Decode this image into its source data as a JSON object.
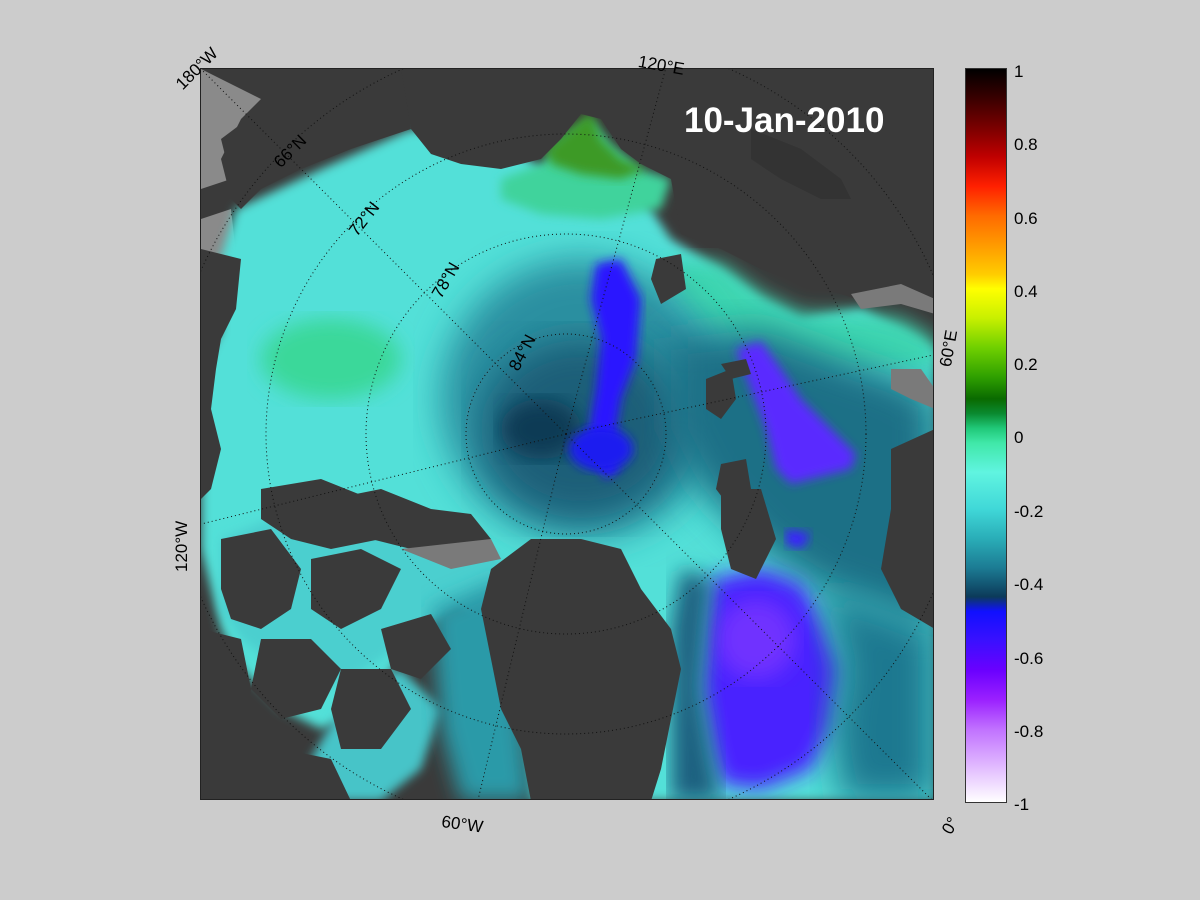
{
  "map": {
    "date": "10-Jan-2010",
    "longitude_labels": [
      "180°W",
      "120°E",
      "60°E",
      "0°",
      "60°W",
      "120°W"
    ],
    "latitude_labels": [
      "66°N",
      "72°N",
      "78°N",
      "84°N"
    ],
    "colors": {
      "background": "#cccccc",
      "land": "#3a3a3a",
      "no_data": "#888888",
      "grid": "#111111"
    }
  },
  "colorbar": {
    "ticks": [
      "1",
      "0.8",
      "0.6",
      "0.4",
      "0.2",
      "0",
      "-0.2",
      "-0.4",
      "-0.6",
      "-0.8",
      "-1"
    ],
    "range": [
      -1,
      1
    ]
  }
}
